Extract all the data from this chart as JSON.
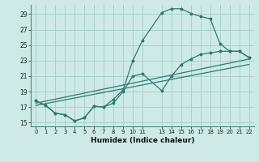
{
  "xlabel": "Humidex (Indice chaleur)",
  "bg_color": "#ceeae6",
  "grid_color": "#a8d0ca",
  "line_color": "#2d7a6e",
  "xlim": [
    -0.5,
    22.5
  ],
  "ylim": [
    14.5,
    30.2
  ],
  "yticks": [
    15,
    17,
    19,
    21,
    23,
    25,
    27,
    29
  ],
  "xtick_positions": [
    0,
    1,
    2,
    3,
    4,
    5,
    6,
    7,
    8,
    9,
    10,
    11,
    13,
    14,
    15,
    16,
    17,
    18,
    19,
    20,
    21,
    22
  ],
  "xtick_labels": [
    "0",
    "1",
    "2",
    "3",
    "4",
    "5",
    "6",
    "7",
    "8",
    "9",
    "10",
    "11",
    "13",
    "14",
    "15",
    "16",
    "17",
    "18",
    "19",
    "20",
    "21",
    "22"
  ],
  "series1_x": [
    0,
    1,
    2,
    3,
    4,
    5,
    6,
    7,
    8,
    9,
    10,
    11,
    13,
    14,
    15,
    16,
    17,
    18,
    19,
    20,
    21,
    22
  ],
  "series1_y": [
    17.8,
    17.2,
    16.2,
    16.0,
    15.2,
    15.6,
    17.1,
    17.0,
    18.0,
    19.2,
    23.0,
    25.6,
    29.2,
    29.7,
    29.7,
    29.1,
    28.7,
    28.4,
    25.2,
    24.2,
    24.2,
    23.4
  ],
  "series2_x": [
    0,
    1,
    2,
    3,
    4,
    5,
    6,
    7,
    8,
    9,
    10,
    11,
    13,
    14,
    15,
    16,
    17,
    18,
    19,
    20,
    21,
    22
  ],
  "series2_y": [
    17.8,
    17.2,
    16.2,
    16.0,
    15.2,
    15.6,
    17.1,
    17.0,
    17.5,
    19.0,
    21.0,
    21.3,
    19.1,
    21.0,
    22.5,
    23.2,
    23.8,
    24.0,
    24.2,
    24.2,
    24.2,
    23.4
  ],
  "series3_x": [
    0,
    22
  ],
  "series3_y": [
    17.5,
    23.2
  ],
  "series4_x": [
    0,
    22
  ],
  "series4_y": [
    17.2,
    22.5
  ]
}
